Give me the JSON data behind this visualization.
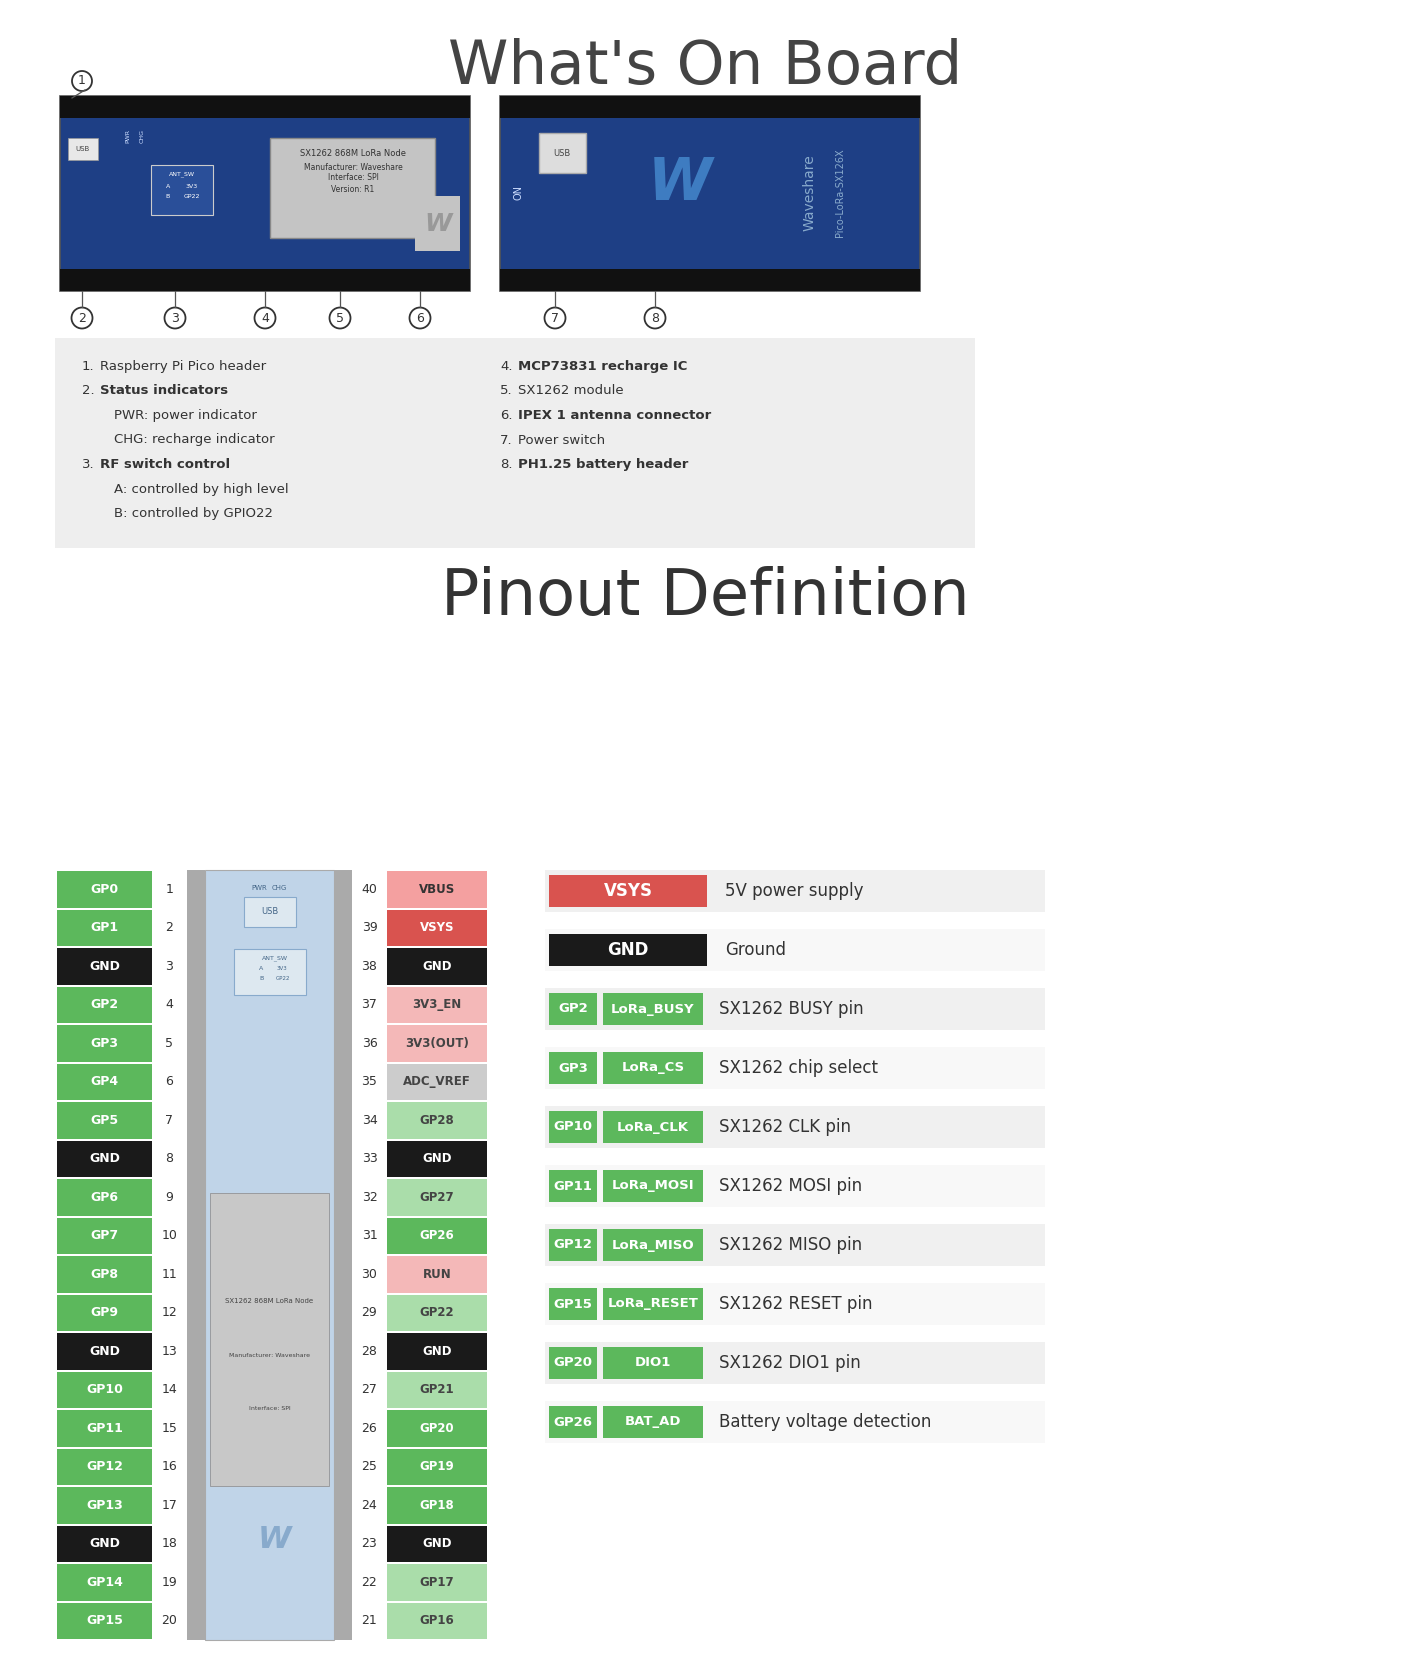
{
  "title1": "What's On Board",
  "title2": "Pinout Definition",
  "bg_color": "#ffffff",
  "left_pins": [
    {
      "label": "GP0",
      "num": "1",
      "color": "#5cb85c",
      "tc": "#ffffff",
      "bright": true
    },
    {
      "label": "GP1",
      "num": "2",
      "color": "#5cb85c",
      "tc": "#ffffff",
      "bright": true
    },
    {
      "label": "GND",
      "num": "3",
      "color": "#1a1a1a",
      "tc": "#ffffff",
      "bright": false
    },
    {
      "label": "GP2",
      "num": "4",
      "color": "#5cb85c",
      "tc": "#ffffff",
      "bright": true
    },
    {
      "label": "GP3",
      "num": "5",
      "color": "#5cb85c",
      "tc": "#ffffff",
      "bright": true
    },
    {
      "label": "GP4",
      "num": "6",
      "color": "#5cb85c",
      "tc": "#ffffff",
      "bright": false
    },
    {
      "label": "GP5",
      "num": "7",
      "color": "#5cb85c",
      "tc": "#ffffff",
      "bright": false
    },
    {
      "label": "GND",
      "num": "8",
      "color": "#1a1a1a",
      "tc": "#ffffff",
      "bright": false
    },
    {
      "label": "GP6",
      "num": "9",
      "color": "#5cb85c",
      "tc": "#ffffff",
      "bright": false
    },
    {
      "label": "GP7",
      "num": "10",
      "color": "#5cb85c",
      "tc": "#ffffff",
      "bright": false
    },
    {
      "label": "GP8",
      "num": "11",
      "color": "#5cb85c",
      "tc": "#ffffff",
      "bright": false
    },
    {
      "label": "GP9",
      "num": "12",
      "color": "#5cb85c",
      "tc": "#ffffff",
      "bright": false
    },
    {
      "label": "GND",
      "num": "13",
      "color": "#1a1a1a",
      "tc": "#ffffff",
      "bright": false
    },
    {
      "label": "GP10",
      "num": "14",
      "color": "#5cb85c",
      "tc": "#ffffff",
      "bright": true
    },
    {
      "label": "GP11",
      "num": "15",
      "color": "#5cb85c",
      "tc": "#ffffff",
      "bright": true
    },
    {
      "label": "GP12",
      "num": "16",
      "color": "#5cb85c",
      "tc": "#ffffff",
      "bright": true
    },
    {
      "label": "GP13",
      "num": "17",
      "color": "#5cb85c",
      "tc": "#ffffff",
      "bright": false
    },
    {
      "label": "GND",
      "num": "18",
      "color": "#1a1a1a",
      "tc": "#ffffff",
      "bright": false
    },
    {
      "label": "GP14",
      "num": "19",
      "color": "#5cb85c",
      "tc": "#ffffff",
      "bright": false
    },
    {
      "label": "GP15",
      "num": "20",
      "color": "#5cb85c",
      "tc": "#ffffff",
      "bright": true
    }
  ],
  "right_pins": [
    {
      "label": "VBUS",
      "num": "40",
      "color": "#f4a0a0",
      "tc": "#333333"
    },
    {
      "label": "VSYS",
      "num": "39",
      "color": "#d9534f",
      "tc": "#ffffff"
    },
    {
      "label": "GND",
      "num": "38",
      "color": "#1a1a1a",
      "tc": "#ffffff"
    },
    {
      "label": "3V3_EN",
      "num": "37",
      "color": "#f4b8b8",
      "tc": "#444444"
    },
    {
      "label": "3V3(OUT)",
      "num": "36",
      "color": "#f4b8b8",
      "tc": "#444444"
    },
    {
      "label": "ADC_VREF",
      "num": "35",
      "color": "#cccccc",
      "tc": "#444444"
    },
    {
      "label": "GP28",
      "num": "34",
      "color": "#aaddaa",
      "tc": "#444444"
    },
    {
      "label": "GND",
      "num": "33",
      "color": "#1a1a1a",
      "tc": "#ffffff"
    },
    {
      "label": "GP27",
      "num": "32",
      "color": "#aaddaa",
      "tc": "#444444"
    },
    {
      "label": "GP26",
      "num": "31",
      "color": "#5cb85c",
      "tc": "#ffffff"
    },
    {
      "label": "RUN",
      "num": "30",
      "color": "#f4b8b8",
      "tc": "#444444"
    },
    {
      "label": "GP22",
      "num": "29",
      "color": "#aaddaa",
      "tc": "#444444"
    },
    {
      "label": "GND",
      "num": "28",
      "color": "#1a1a1a",
      "tc": "#ffffff"
    },
    {
      "label": "GP21",
      "num": "27",
      "color": "#aaddaa",
      "tc": "#444444"
    },
    {
      "label": "GP20",
      "num": "26",
      "color": "#5cb85c",
      "tc": "#ffffff"
    },
    {
      "label": "GP19",
      "num": "25",
      "color": "#5cb85c",
      "tc": "#ffffff"
    },
    {
      "label": "GP18",
      "num": "24",
      "color": "#5cb85c",
      "tc": "#ffffff"
    },
    {
      "label": "GND",
      "num": "23",
      "color": "#1a1a1a",
      "tc": "#ffffff"
    },
    {
      "label": "GP17",
      "num": "22",
      "color": "#aaddaa",
      "tc": "#444444"
    },
    {
      "label": "GP16",
      "num": "21",
      "color": "#aaddaa",
      "tc": "#444444"
    }
  ],
  "pin_descriptions": [
    {
      "gp": "VSYS",
      "func": null,
      "desc": "5V power supply",
      "gc": "#d9534f",
      "gt": "#ffffff"
    },
    {
      "gp": "GND",
      "func": null,
      "desc": "Ground",
      "gc": "#1a1a1a",
      "gt": "#ffffff"
    },
    {
      "gp": "GP2",
      "func": "LoRa_BUSY",
      "desc": "SX1262 BUSY pin",
      "gc": "#5cb85c",
      "gt": "#ffffff"
    },
    {
      "gp": "GP3",
      "func": "LoRa_CS",
      "desc": "SX1262 chip select",
      "gc": "#5cb85c",
      "gt": "#ffffff"
    },
    {
      "gp": "GP10",
      "func": "LoRa_CLK",
      "desc": "SX1262 CLK pin",
      "gc": "#5cb85c",
      "gt": "#ffffff"
    },
    {
      "gp": "GP11",
      "func": "LoRa_MOSI",
      "desc": "SX1262 MOSI pin",
      "gc": "#5cb85c",
      "gt": "#ffffff"
    },
    {
      "gp": "GP12",
      "func": "LoRa_MISO",
      "desc": "SX1262 MISO pin",
      "gc": "#5cb85c",
      "gt": "#ffffff"
    },
    {
      "gp": "GP15",
      "func": "LoRa_RESET",
      "desc": "SX1262 RESET pin",
      "gc": "#5cb85c",
      "gt": "#ffffff"
    },
    {
      "gp": "GP20",
      "func": "DIO1",
      "desc": "SX1262 DIO1 pin",
      "gc": "#5cb85c",
      "gt": "#ffffff"
    },
    {
      "gp": "GP26",
      "func": "BAT_AD",
      "desc": "Battery voltage detection",
      "gc": "#5cb85c",
      "gt": "#ffffff"
    }
  ],
  "info_left": [
    {
      "num": "1",
      "text": "Raspberry Pi Pico header",
      "bold": false,
      "indent": false
    },
    {
      "num": "2",
      "text": "Status indicators",
      "bold": true,
      "indent": false
    },
    {
      "num": "",
      "text": "PWR: power indicator",
      "bold": false,
      "indent": true
    },
    {
      "num": "",
      "text": "CHG: recharge indicator",
      "bold": false,
      "indent": true
    },
    {
      "num": "3",
      "text": "RF switch control",
      "bold": true,
      "indent": false
    },
    {
      "num": "",
      "text": "A: controlled by high level",
      "bold": false,
      "indent": true
    },
    {
      "num": "",
      "text": "B: controlled by GPIO22",
      "bold": false,
      "indent": true
    }
  ],
  "info_right": [
    {
      "num": "4",
      "text": "MCP73831 recharge IC",
      "bold": true,
      "indent": false
    },
    {
      "num": "5",
      "text": "SX1262 module",
      "bold": false,
      "indent": false
    },
    {
      "num": "6",
      "text": "IPEX 1 antenna connector",
      "bold": true,
      "indent": false
    },
    {
      "num": "7",
      "text": "Power switch",
      "bold": false,
      "indent": false
    },
    {
      "num": "8",
      "text": "PH1.25 battery header",
      "bold": true,
      "indent": false
    }
  ]
}
